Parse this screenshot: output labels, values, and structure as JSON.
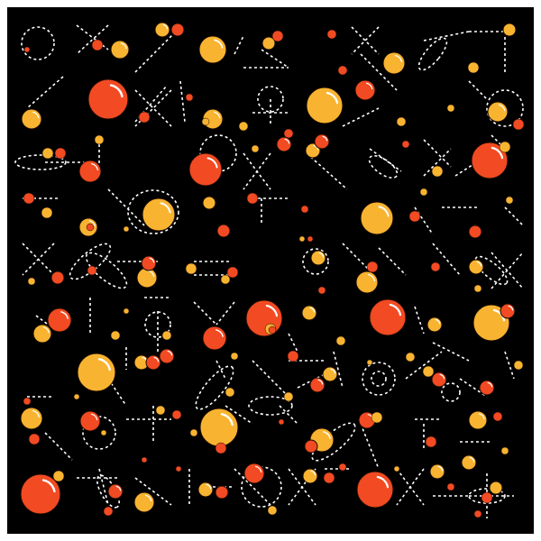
{
  "artwork": {
    "background_color": "#000000",
    "frame_color": "#ffffff",
    "palette": {
      "red": "#f24a22",
      "yellow": "#f8b431",
      "line": "#ffffff",
      "highlight": "#ffffff",
      "outline": "#1a0a00"
    }
  }
}
